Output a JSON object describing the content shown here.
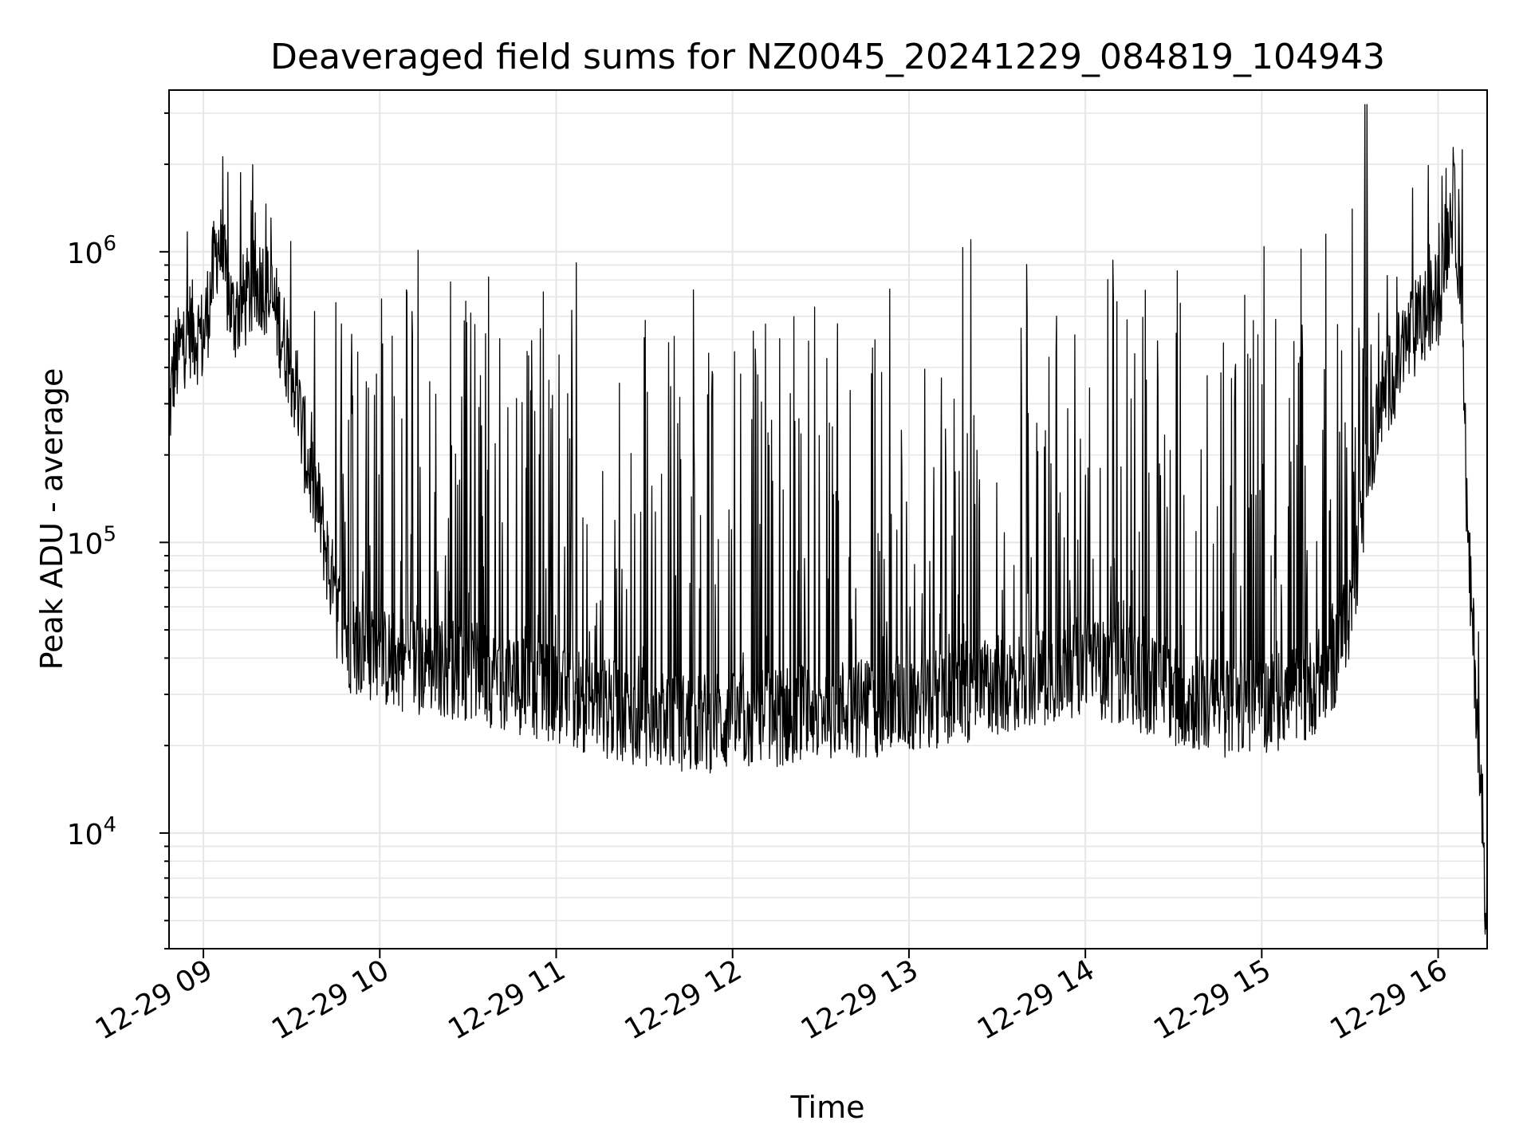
{
  "chart_data": {
    "type": "line",
    "title": "Deaveraged field sums for NZ0045_20241229_084819_104943",
    "xlabel": "Time",
    "ylabel": "Peak ADU - average",
    "yscale": "log",
    "ylim": [
      4000,
      3600000
    ],
    "xlim": [
      "2024-12-29 08:48:19",
      "2024-12-29 16:16:40"
    ],
    "grid": true,
    "line_color": "#000000",
    "grid_color": "#e6e6e6",
    "x_ticks": [
      {
        "value": "2024-12-29 09:00",
        "label": "12-29 09"
      },
      {
        "value": "2024-12-29 10:00",
        "label": "12-29 10"
      },
      {
        "value": "2024-12-29 11:00",
        "label": "12-29 11"
      },
      {
        "value": "2024-12-29 12:00",
        "label": "12-29 12"
      },
      {
        "value": "2024-12-29 13:00",
        "label": "12-29 13"
      },
      {
        "value": "2024-12-29 14:00",
        "label": "12-29 14"
      },
      {
        "value": "2024-12-29 15:00",
        "label": "12-29 15"
      },
      {
        "value": "2024-12-29 16:00",
        "label": "12-29 16"
      }
    ],
    "y_ticks": [
      {
        "value": 10000,
        "base": "10",
        "exp": "4"
      },
      {
        "value": 100000,
        "base": "10",
        "exp": "5"
      },
      {
        "value": 1000000,
        "base": "10",
        "exp": "6"
      }
    ],
    "series": [
      {
        "x": [
          "2024-12-29 08:48",
          "2024-12-29 08:50",
          "2024-12-29 08:55",
          "2024-12-29 09:00",
          "2024-12-29 09:05",
          "2024-12-29 09:10",
          "2024-12-29 09:15",
          "2024-12-29 09:20",
          "2024-12-29 09:25",
          "2024-12-29 09:30",
          "2024-12-29 09:35",
          "2024-12-29 09:40",
          "2024-12-29 09:45",
          "2024-12-29 09:50",
          "2024-12-29 10:00",
          "2024-12-29 10:15",
          "2024-12-29 10:30",
          "2024-12-29 10:45",
          "2024-12-29 11:00",
          "2024-12-29 11:15",
          "2024-12-29 11:30",
          "2024-12-29 11:45",
          "2024-12-29 12:00",
          "2024-12-29 12:15",
          "2024-12-29 12:30",
          "2024-12-29 12:45",
          "2024-12-29 13:00",
          "2024-12-29 13:15",
          "2024-12-29 13:30",
          "2024-12-29 13:45",
          "2024-12-29 14:00",
          "2024-12-29 14:15",
          "2024-12-29 14:30",
          "2024-12-29 14:45",
          "2024-12-29 15:00",
          "2024-12-29 15:15",
          "2024-12-29 15:25",
          "2024-12-29 15:30",
          "2024-12-29 15:40",
          "2024-12-29 15:50",
          "2024-12-29 16:00",
          "2024-12-29 16:05",
          "2024-12-29 16:08",
          "2024-12-29 16:10",
          "2024-12-29 16:13",
          "2024-12-29 16:16"
        ],
        "y": [
          250000,
          400000,
          550000,
          500000,
          1100000,
          600000,
          700000,
          800000,
          600000,
          400000,
          200000,
          120000,
          60000,
          45000,
          40000,
          38000,
          36000,
          33000,
          30000,
          27000,
          25000,
          24000,
          24000,
          25000,
          27000,
          27000,
          28000,
          30000,
          32000,
          35000,
          38000,
          34000,
          30000,
          27000,
          28000,
          30000,
          40000,
          60000,
          300000,
          500000,
          700000,
          1500000,
          800000,
          100000,
          30000,
          6000
        ]
      }
    ]
  }
}
